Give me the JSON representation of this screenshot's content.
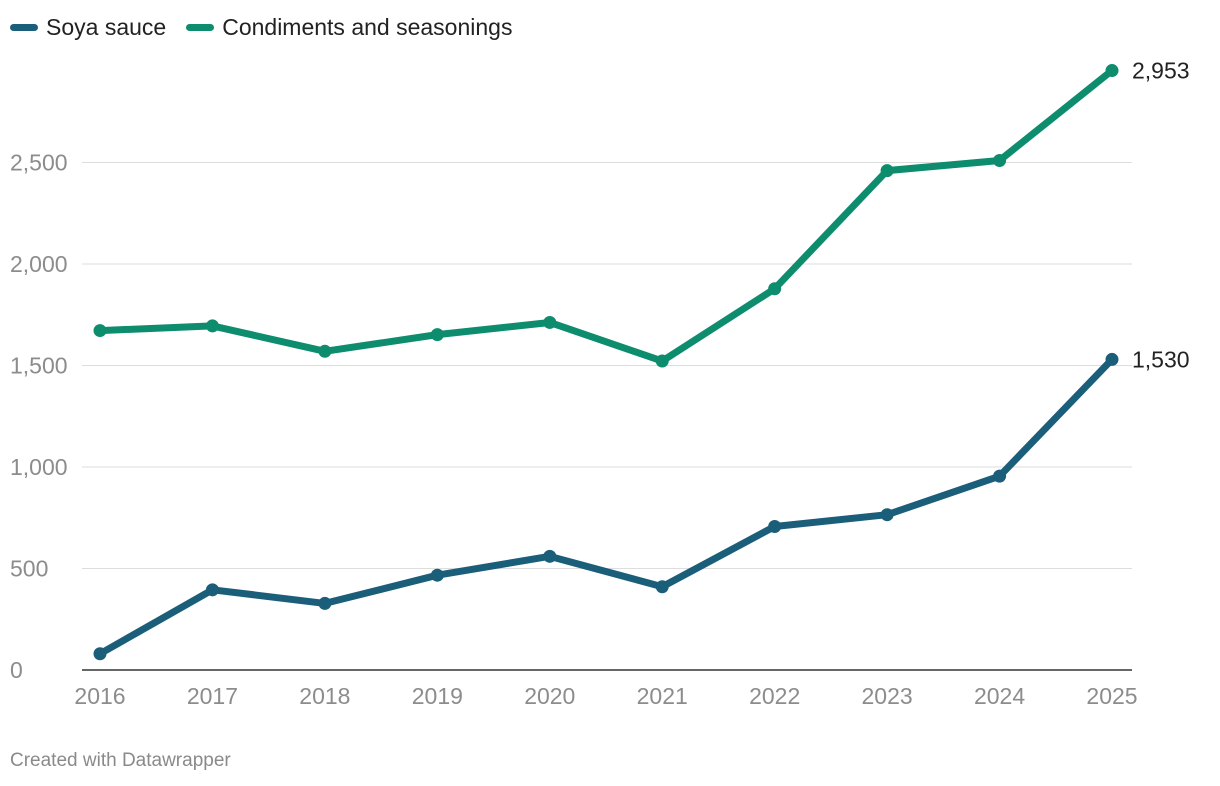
{
  "chart_data": {
    "type": "line",
    "x": [
      "2016",
      "2017",
      "2018",
      "2019",
      "2020",
      "2021",
      "2022",
      "2023",
      "2024",
      "2025"
    ],
    "series": [
      {
        "name": "Soya sauce",
        "color": "#1b5e7a",
        "values": [
          80,
          395,
          328,
          467,
          560,
          410,
          707,
          765,
          955,
          1530
        ],
        "end_label": "1,530"
      },
      {
        "name": "Condiments and seasonings",
        "color": "#0e8c6e",
        "values": [
          1672,
          1695,
          1570,
          1652,
          1712,
          1522,
          1878,
          2460,
          2510,
          2953
        ],
        "end_label": "2,953"
      }
    ],
    "yticks": [
      0,
      500,
      1000,
      1500,
      2000,
      2500
    ],
    "ytick_labels": [
      "0",
      "500",
      "1,000",
      "1,500",
      "2,000",
      "2,500"
    ],
    "ylim": [
      0,
      3000
    ],
    "grid": true,
    "legend_position": "top-left"
  },
  "footer": "Created with Datawrapper"
}
